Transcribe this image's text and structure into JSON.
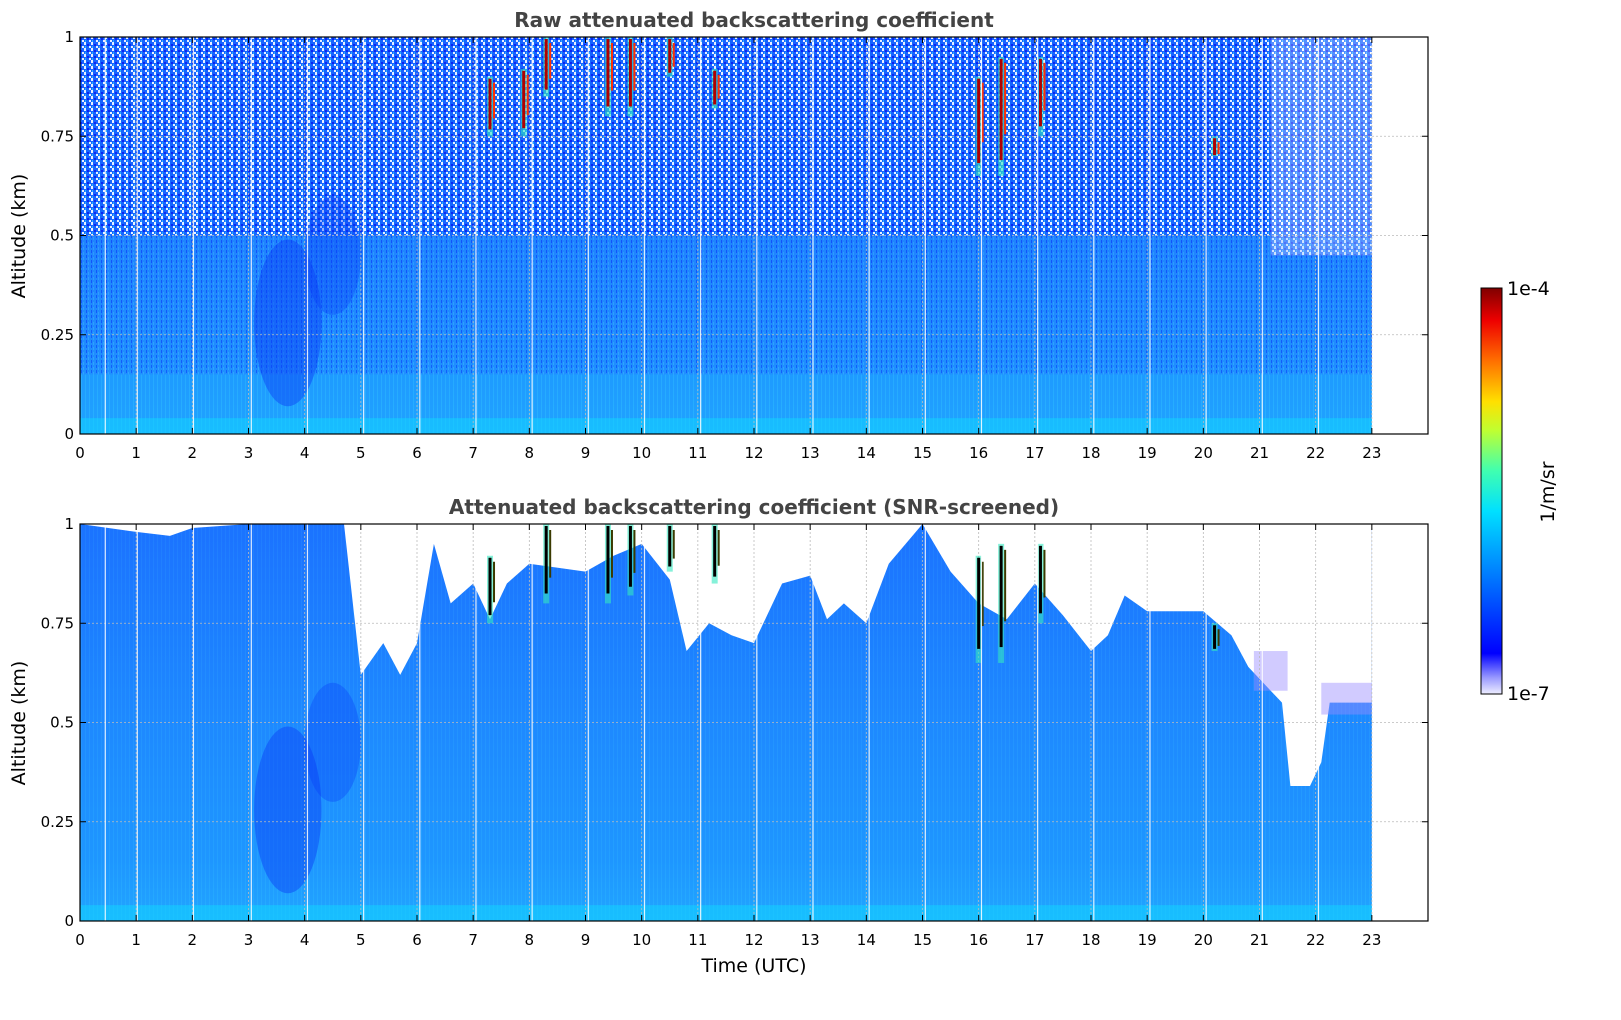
{
  "chart_data": [
    {
      "type": "heatmap",
      "title": "Raw attenuated backscattering coefficient",
      "xlabel": "",
      "ylabel": "Altitude (km)",
      "xlim": [
        0,
        24
      ],
      "ylim": [
        0,
        1
      ],
      "xticks": [
        "0",
        "1",
        "2",
        "3",
        "4",
        "5",
        "6",
        "7",
        "8",
        "9",
        "10",
        "11",
        "12",
        "13",
        "14",
        "15",
        "16",
        "17",
        "18",
        "19",
        "20",
        "21",
        "22",
        "23"
      ],
      "yticks": [
        "0",
        "0.25",
        "0.5",
        "0.75",
        "1"
      ],
      "grid": true,
      "data_extent_hours": [
        0,
        23
      ],
      "screened": false,
      "cloud_events": [
        {
          "t": 7.3,
          "alt": [
            0.75,
            0.9
          ]
        },
        {
          "t": 7.9,
          "alt": [
            0.75,
            0.92
          ]
        },
        {
          "t": 8.3,
          "alt": [
            0.85,
            1.0
          ]
        },
        {
          "t": 9.4,
          "alt": [
            0.8,
            1.0
          ]
        },
        {
          "t": 9.8,
          "alt": [
            0.8,
            1.0
          ]
        },
        {
          "t": 10.5,
          "alt": [
            0.9,
            1.0
          ]
        },
        {
          "t": 11.3,
          "alt": [
            0.82,
            0.92
          ]
        },
        {
          "t": 16.0,
          "alt": [
            0.65,
            0.9
          ]
        },
        {
          "t": 16.4,
          "alt": [
            0.65,
            0.95
          ]
        },
        {
          "t": 17.1,
          "alt": [
            0.75,
            0.95
          ]
        },
        {
          "t": 20.2,
          "alt": [
            0.7,
            0.75
          ]
        }
      ]
    },
    {
      "type": "heatmap",
      "title": "Attenuated backscattering coefficient (SNR-screened)",
      "xlabel": "Time (UTC)",
      "ylabel": "Altitude (km)",
      "xlim": [
        0,
        24
      ],
      "ylim": [
        0,
        1
      ],
      "xticks": [
        "0",
        "1",
        "2",
        "3",
        "4",
        "5",
        "6",
        "7",
        "8",
        "9",
        "10",
        "11",
        "12",
        "13",
        "14",
        "15",
        "16",
        "17",
        "18",
        "19",
        "20",
        "21",
        "22",
        "23"
      ],
      "yticks": [
        "0",
        "0.25",
        "0.5",
        "0.75",
        "1"
      ],
      "grid": true,
      "data_extent_hours": [
        0,
        23
      ],
      "screened": true,
      "screen_top_km": [
        [
          0,
          1.0
        ],
        [
          1.0,
          0.98
        ],
        [
          1.6,
          0.97
        ],
        [
          2.0,
          0.99
        ],
        [
          3.0,
          1.0
        ],
        [
          4.7,
          1.0
        ],
        [
          5.0,
          0.62
        ],
        [
          5.4,
          0.7
        ],
        [
          5.7,
          0.62
        ],
        [
          6.0,
          0.7
        ],
        [
          6.3,
          0.95
        ],
        [
          6.6,
          0.8
        ],
        [
          7.0,
          0.85
        ],
        [
          7.3,
          0.76
        ],
        [
          7.6,
          0.85
        ],
        [
          8.0,
          0.9
        ],
        [
          9.0,
          0.88
        ],
        [
          9.5,
          0.92
        ],
        [
          10.0,
          0.95
        ],
        [
          10.5,
          0.86
        ],
        [
          10.8,
          0.68
        ],
        [
          11.2,
          0.75
        ],
        [
          11.6,
          0.72
        ],
        [
          12.0,
          0.7
        ],
        [
          12.5,
          0.85
        ],
        [
          13.0,
          0.87
        ],
        [
          13.3,
          0.76
        ],
        [
          13.6,
          0.8
        ],
        [
          14.0,
          0.75
        ],
        [
          14.4,
          0.9
        ],
        [
          15.0,
          1.0
        ],
        [
          15.5,
          0.88
        ],
        [
          16.0,
          0.8
        ],
        [
          16.5,
          0.76
        ],
        [
          17.0,
          0.85
        ],
        [
          17.5,
          0.77
        ],
        [
          18.0,
          0.68
        ],
        [
          18.3,
          0.72
        ],
        [
          18.6,
          0.82
        ],
        [
          19.0,
          0.78
        ],
        [
          20.0,
          0.78
        ],
        [
          20.5,
          0.72
        ],
        [
          20.8,
          0.64
        ],
        [
          21.2,
          0.58
        ],
        [
          21.4,
          0.55
        ],
        [
          21.55,
          0.34
        ],
        [
          21.9,
          0.34
        ],
        [
          22.1,
          0.4
        ],
        [
          22.25,
          0.55
        ],
        [
          22.6,
          0.55
        ],
        [
          23.0,
          0.55
        ]
      ],
      "cloud_events": [
        {
          "t": 7.3,
          "alt": [
            0.75,
            0.92
          ]
        },
        {
          "t": 8.3,
          "alt": [
            0.8,
            1.0
          ]
        },
        {
          "t": 9.4,
          "alt": [
            0.8,
            1.0
          ]
        },
        {
          "t": 9.8,
          "alt": [
            0.82,
            1.0
          ]
        },
        {
          "t": 10.5,
          "alt": [
            0.88,
            1.0
          ]
        },
        {
          "t": 11.3,
          "alt": [
            0.85,
            1.0
          ]
        },
        {
          "t": 16.0,
          "alt": [
            0.65,
            0.92
          ]
        },
        {
          "t": 16.4,
          "alt": [
            0.65,
            0.95
          ]
        },
        {
          "t": 17.1,
          "alt": [
            0.75,
            0.95
          ]
        },
        {
          "t": 20.2,
          "alt": [
            0.68,
            0.75
          ]
        }
      ]
    }
  ],
  "colorbar": {
    "max_label": "1e-4",
    "min_label": "1e-7",
    "unit_label": "1/m/sr",
    "colormap": "jet",
    "scale": "log"
  },
  "colors": {
    "low": "#0a2bff",
    "mid": "#1f9bff",
    "surface": "#12d3ff",
    "high": "#8b0000",
    "grid": "#bbbbbb",
    "title": "#444444"
  }
}
